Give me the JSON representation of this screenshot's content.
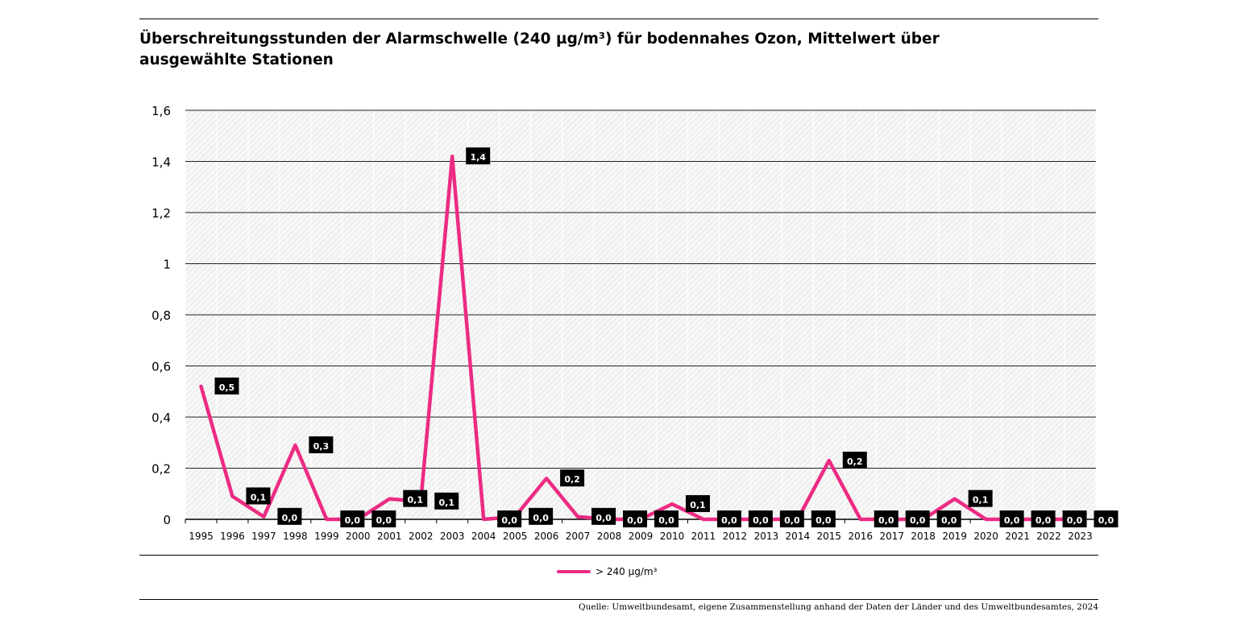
{
  "title": "Überschreitungsstunden der Alarmschwelle (240 µg/m³) für bodennahes Ozon, Mittelwert über ausgewählte Stationen",
  "source": "Quelle: Umweltbundesamt, eigene Zusammenstellung anhand der Daten der Länder und des Umweltbundesamtes, 2024",
  "chart_data": {
    "type": "line",
    "title": "Überschreitungsstunden der Alarmschwelle (240 µg/m³) für bodennahes Ozon, Mittelwert über ausgewählte Stationen",
    "xlabel": "",
    "ylabel": "",
    "ylim": [
      0,
      1.6
    ],
    "yticks": [
      0,
      0.2,
      0.4,
      0.6,
      0.8,
      1,
      1.2,
      1.4,
      1.6
    ],
    "ytick_labels": [
      "0",
      "0,2",
      "0,4",
      "0,6",
      "0,8",
      "1",
      "1,2",
      "1,4",
      "1,6"
    ],
    "grid": true,
    "legend_position": "bottom-center",
    "categories": [
      "1995",
      "1996",
      "1997",
      "1998",
      "1999",
      "2000",
      "2001",
      "2002",
      "2003",
      "2004",
      "2005",
      "2006",
      "2007",
      "2008",
      "2009",
      "2010",
      "2011",
      "2012",
      "2013",
      "2014",
      "2015",
      "2016",
      "2017",
      "2018",
      "2019",
      "2020",
      "2021",
      "2022",
      "2023"
    ],
    "series": [
      {
        "name": "> 240 µg/m³",
        "color": "#ec2b83",
        "values": [
          0.52,
          0.09,
          0.01,
          0.29,
          0.0,
          0.0,
          0.08,
          0.07,
          1.42,
          0.0,
          0.01,
          0.16,
          0.01,
          0.0,
          0.0,
          0.06,
          0.0,
          0.0,
          0.0,
          0.0,
          0.23,
          0.0,
          0.0,
          0.0,
          0.08,
          0.0,
          0.0,
          0.0,
          0.0
        ],
        "labels": [
          "0,5",
          "0,1",
          "0,0",
          "0,3",
          "0,0",
          "0,0",
          "0,1",
          "0,1",
          "1,4",
          "0,0",
          "0,0",
          "0,2",
          "0,0",
          "0,0",
          "0,0",
          "0,1",
          "0,0",
          "0,0",
          "0,0",
          "0,0",
          "0,2",
          "0,0",
          "0,0",
          "0,0",
          "0,1",
          "0,0",
          "0,0",
          "0,0",
          "0,0"
        ]
      }
    ]
  }
}
